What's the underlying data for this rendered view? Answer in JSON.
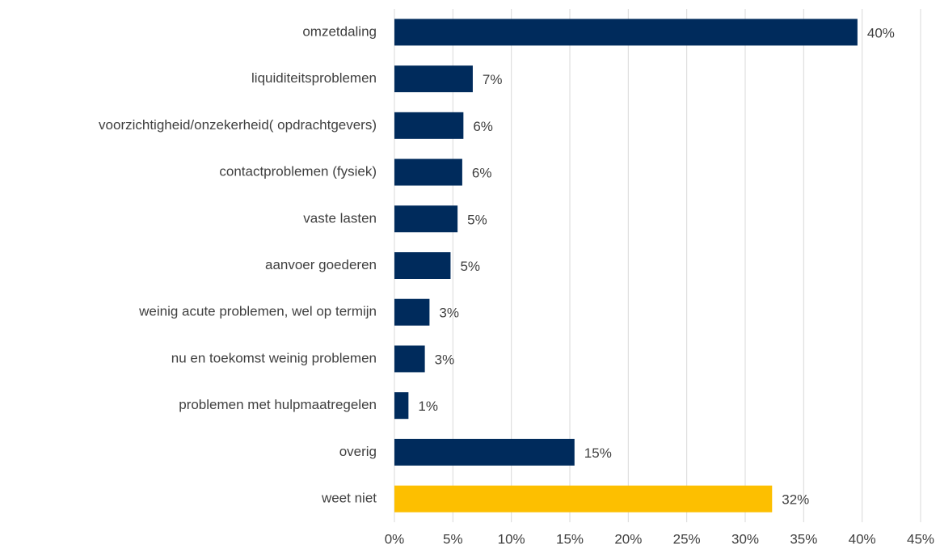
{
  "chart_data": {
    "type": "barh",
    "categories": [
      "omzetdaling",
      "liquiditeitsproblemen",
      "voorzichtigheid/onzekerheid( opdrachtgevers)",
      "contactproblemen (fysiek)",
      "vaste lasten",
      "aanvoer goederen",
      "weinig acute problemen, wel op termijn",
      "nu en toekomst weinig problemen",
      "problemen met hulpmaatregelen",
      "overig",
      "weet niet"
    ],
    "values": [
      39.6,
      6.7,
      5.9,
      5.8,
      5.4,
      4.8,
      3.0,
      2.6,
      1.2,
      15.4,
      32.3
    ],
    "value_labels": [
      "40%",
      "7%",
      "6%",
      "6%",
      "5%",
      "5%",
      "3%",
      "3%",
      "1%",
      "15%",
      "32%"
    ],
    "colors": [
      "#002b5c",
      "#002b5c",
      "#002b5c",
      "#002b5c",
      "#002b5c",
      "#002b5c",
      "#002b5c",
      "#002b5c",
      "#002b5c",
      "#002b5c",
      "#fdbf00"
    ],
    "xlim": [
      0,
      45
    ],
    "xticks": [
      {
        "value": 0,
        "label": "0%"
      },
      {
        "value": 5,
        "label": "5%"
      },
      {
        "value": 10,
        "label": "10%"
      },
      {
        "value": 15,
        "label": "15%"
      },
      {
        "value": 20,
        "label": "20%"
      },
      {
        "value": 25,
        "label": "25%"
      },
      {
        "value": 30,
        "label": "30%"
      },
      {
        "value": 35,
        "label": "35%"
      },
      {
        "value": 40,
        "label": "40%"
      },
      {
        "value": 45,
        "label": "45%"
      }
    ],
    "grid": true
  }
}
